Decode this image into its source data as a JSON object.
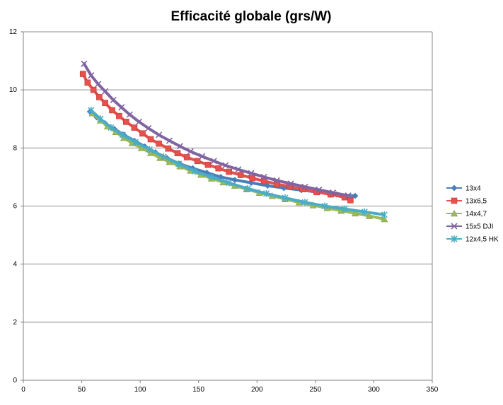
{
  "chart_data": {
    "type": "line",
    "title": "Efficacité globale (grs/W)",
    "xlabel": "",
    "ylabel": "",
    "xlim": [
      0,
      350
    ],
    "ylim": [
      0,
      12
    ],
    "x_ticks": [
      0,
      50,
      100,
      150,
      200,
      250,
      300,
      350
    ],
    "y_ticks": [
      0,
      2,
      4,
      6,
      8,
      10,
      12
    ],
    "grid": "horizontal",
    "legend": "right",
    "series": [
      {
        "name": "13x4",
        "color": "#4a7ebb",
        "marker": "diamond",
        "points": [
          [
            57,
            9.25
          ],
          [
            63,
            9.05
          ],
          [
            70,
            8.85
          ],
          [
            78,
            8.65
          ],
          [
            86,
            8.45
          ],
          [
            95,
            8.25
          ],
          [
            104,
            8.05
          ],
          [
            113,
            7.85
          ],
          [
            123,
            7.65
          ],
          [
            134,
            7.45
          ],
          [
            145,
            7.3
          ],
          [
            157,
            7.15
          ],
          [
            169,
            7.0
          ],
          [
            181,
            6.9
          ],
          [
            195,
            6.8
          ],
          [
            209,
            6.7
          ],
          [
            223,
            6.62
          ],
          [
            238,
            6.55
          ],
          [
            253,
            6.47
          ],
          [
            268,
            6.4
          ],
          [
            284,
            6.35
          ]
        ]
      },
      {
        "name": "13x6,5",
        "color": "#e5514f",
        "marker": "square",
        "points": [
          [
            51,
            10.55
          ],
          [
            55,
            10.25
          ],
          [
            60,
            10.0
          ],
          [
            65,
            9.75
          ],
          [
            70,
            9.55
          ],
          [
            76,
            9.3
          ],
          [
            82,
            9.1
          ],
          [
            88,
            8.9
          ],
          [
            95,
            8.7
          ],
          [
            102,
            8.5
          ],
          [
            109,
            8.3
          ],
          [
            116,
            8.15
          ],
          [
            124,
            7.98
          ],
          [
            132,
            7.82
          ],
          [
            140,
            7.68
          ],
          [
            149,
            7.55
          ],
          [
            158,
            7.42
          ],
          [
            167,
            7.3
          ],
          [
            176,
            7.18
          ],
          [
            186,
            7.07
          ],
          [
            196,
            6.96
          ],
          [
            206,
            6.86
          ],
          [
            217,
            6.76
          ],
          [
            228,
            6.67
          ],
          [
            239,
            6.58
          ],
          [
            251,
            6.48
          ],
          [
            263,
            6.4
          ],
          [
            275,
            6.3
          ],
          [
            280,
            6.2
          ]
        ]
      },
      {
        "name": "14x4,7",
        "color": "#9bbb59",
        "marker": "triangle",
        "points": [
          [
            59,
            9.2
          ],
          [
            66,
            8.95
          ],
          [
            72,
            8.75
          ],
          [
            79,
            8.55
          ],
          [
            86,
            8.35
          ],
          [
            93,
            8.17
          ],
          [
            101,
            8.0
          ],
          [
            109,
            7.83
          ],
          [
            117,
            7.66
          ],
          [
            125,
            7.52
          ],
          [
            134,
            7.37
          ],
          [
            143,
            7.22
          ],
          [
            152,
            7.08
          ],
          [
            161,
            6.95
          ],
          [
            171,
            6.82
          ],
          [
            181,
            6.7
          ],
          [
            191,
            6.58
          ],
          [
            202,
            6.46
          ],
          [
            213,
            6.35
          ],
          [
            224,
            6.24
          ],
          [
            236,
            6.13
          ],
          [
            248,
            6.03
          ],
          [
            260,
            5.93
          ],
          [
            272,
            5.84
          ],
          [
            284,
            5.75
          ],
          [
            296,
            5.66
          ],
          [
            309,
            5.55
          ]
        ]
      },
      {
        "name": "15x5 DJI",
        "color": "#8064a2",
        "marker": "x",
        "points": [
          [
            52,
            10.9
          ],
          [
            58,
            10.5
          ],
          [
            64,
            10.2
          ],
          [
            70,
            9.95
          ],
          [
            77,
            9.65
          ],
          [
            84,
            9.4
          ],
          [
            91,
            9.15
          ],
          [
            99,
            8.9
          ],
          [
            107,
            8.68
          ],
          [
            116,
            8.45
          ],
          [
            125,
            8.25
          ],
          [
            134,
            8.06
          ],
          [
            143,
            7.88
          ],
          [
            153,
            7.71
          ],
          [
            163,
            7.55
          ],
          [
            173,
            7.4
          ],
          [
            184,
            7.26
          ],
          [
            195,
            7.13
          ],
          [
            206,
            7.0
          ],
          [
            217,
            6.88
          ],
          [
            229,
            6.77
          ],
          [
            241,
            6.66
          ],
          [
            253,
            6.56
          ],
          [
            265,
            6.46
          ],
          [
            278,
            6.36
          ]
        ]
      },
      {
        "name": "12x4,5 HK",
        "color": "#4bacc6",
        "marker": "star",
        "points": [
          [
            58,
            9.3
          ],
          [
            66,
            9.0
          ],
          [
            75,
            8.7
          ],
          [
            85,
            8.45
          ],
          [
            96,
            8.2
          ],
          [
            108,
            7.95
          ],
          [
            120,
            7.7
          ],
          [
            133,
            7.45
          ],
          [
            147,
            7.2
          ],
          [
            161,
            7.0
          ],
          [
            176,
            6.8
          ],
          [
            192,
            6.6
          ],
          [
            208,
            6.43
          ],
          [
            224,
            6.28
          ],
          [
            241,
            6.13
          ],
          [
            258,
            6.0
          ],
          [
            275,
            5.9
          ],
          [
            292,
            5.8
          ],
          [
            309,
            5.7
          ]
        ]
      }
    ]
  }
}
